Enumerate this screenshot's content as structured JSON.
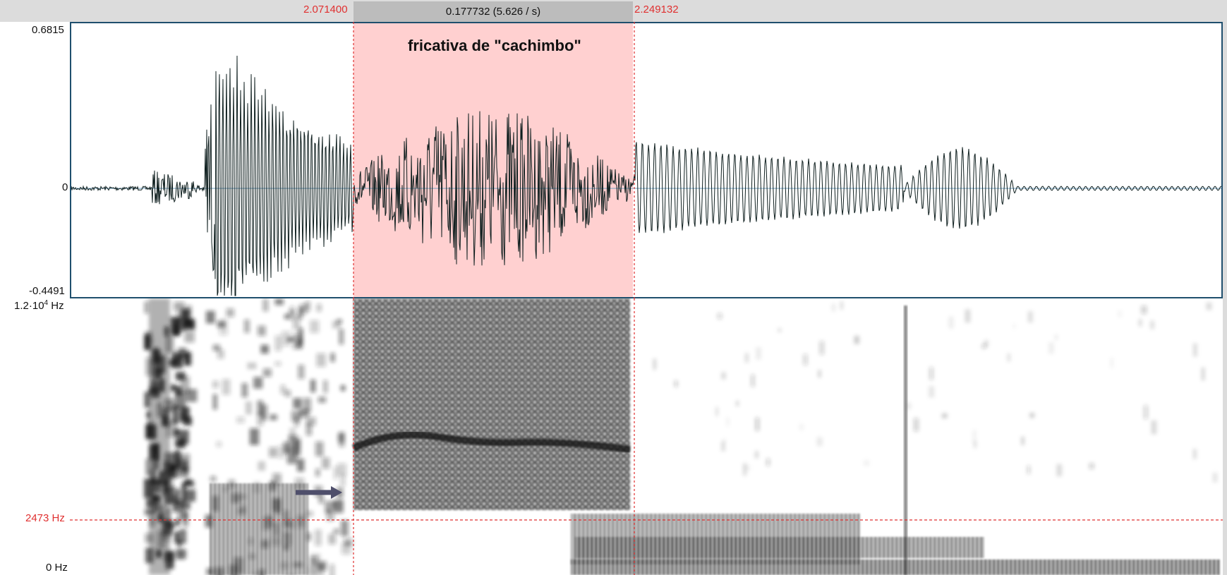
{
  "selection": {
    "start": "2.071400",
    "end": "2.249132",
    "duration_text": "0.177732 (5.626 / s)"
  },
  "waveform": {
    "max_label": "0.6815",
    "zero_label": "0",
    "min_label": "-0.4491"
  },
  "spectrogram": {
    "top_label_base": "1.2·10",
    "top_label_exp": "4",
    "top_label_unit": " Hz",
    "cursor_label": "2473 Hz",
    "bottom_label": "0 Hz"
  },
  "annotation": "fricativa de \"cachimbo\"",
  "colors": {
    "selection_fill": "#ffd0d0",
    "cursor_red": "#e03030",
    "wave_frame": "#1f4f6d",
    "arrow": "#4f4f6b"
  }
}
